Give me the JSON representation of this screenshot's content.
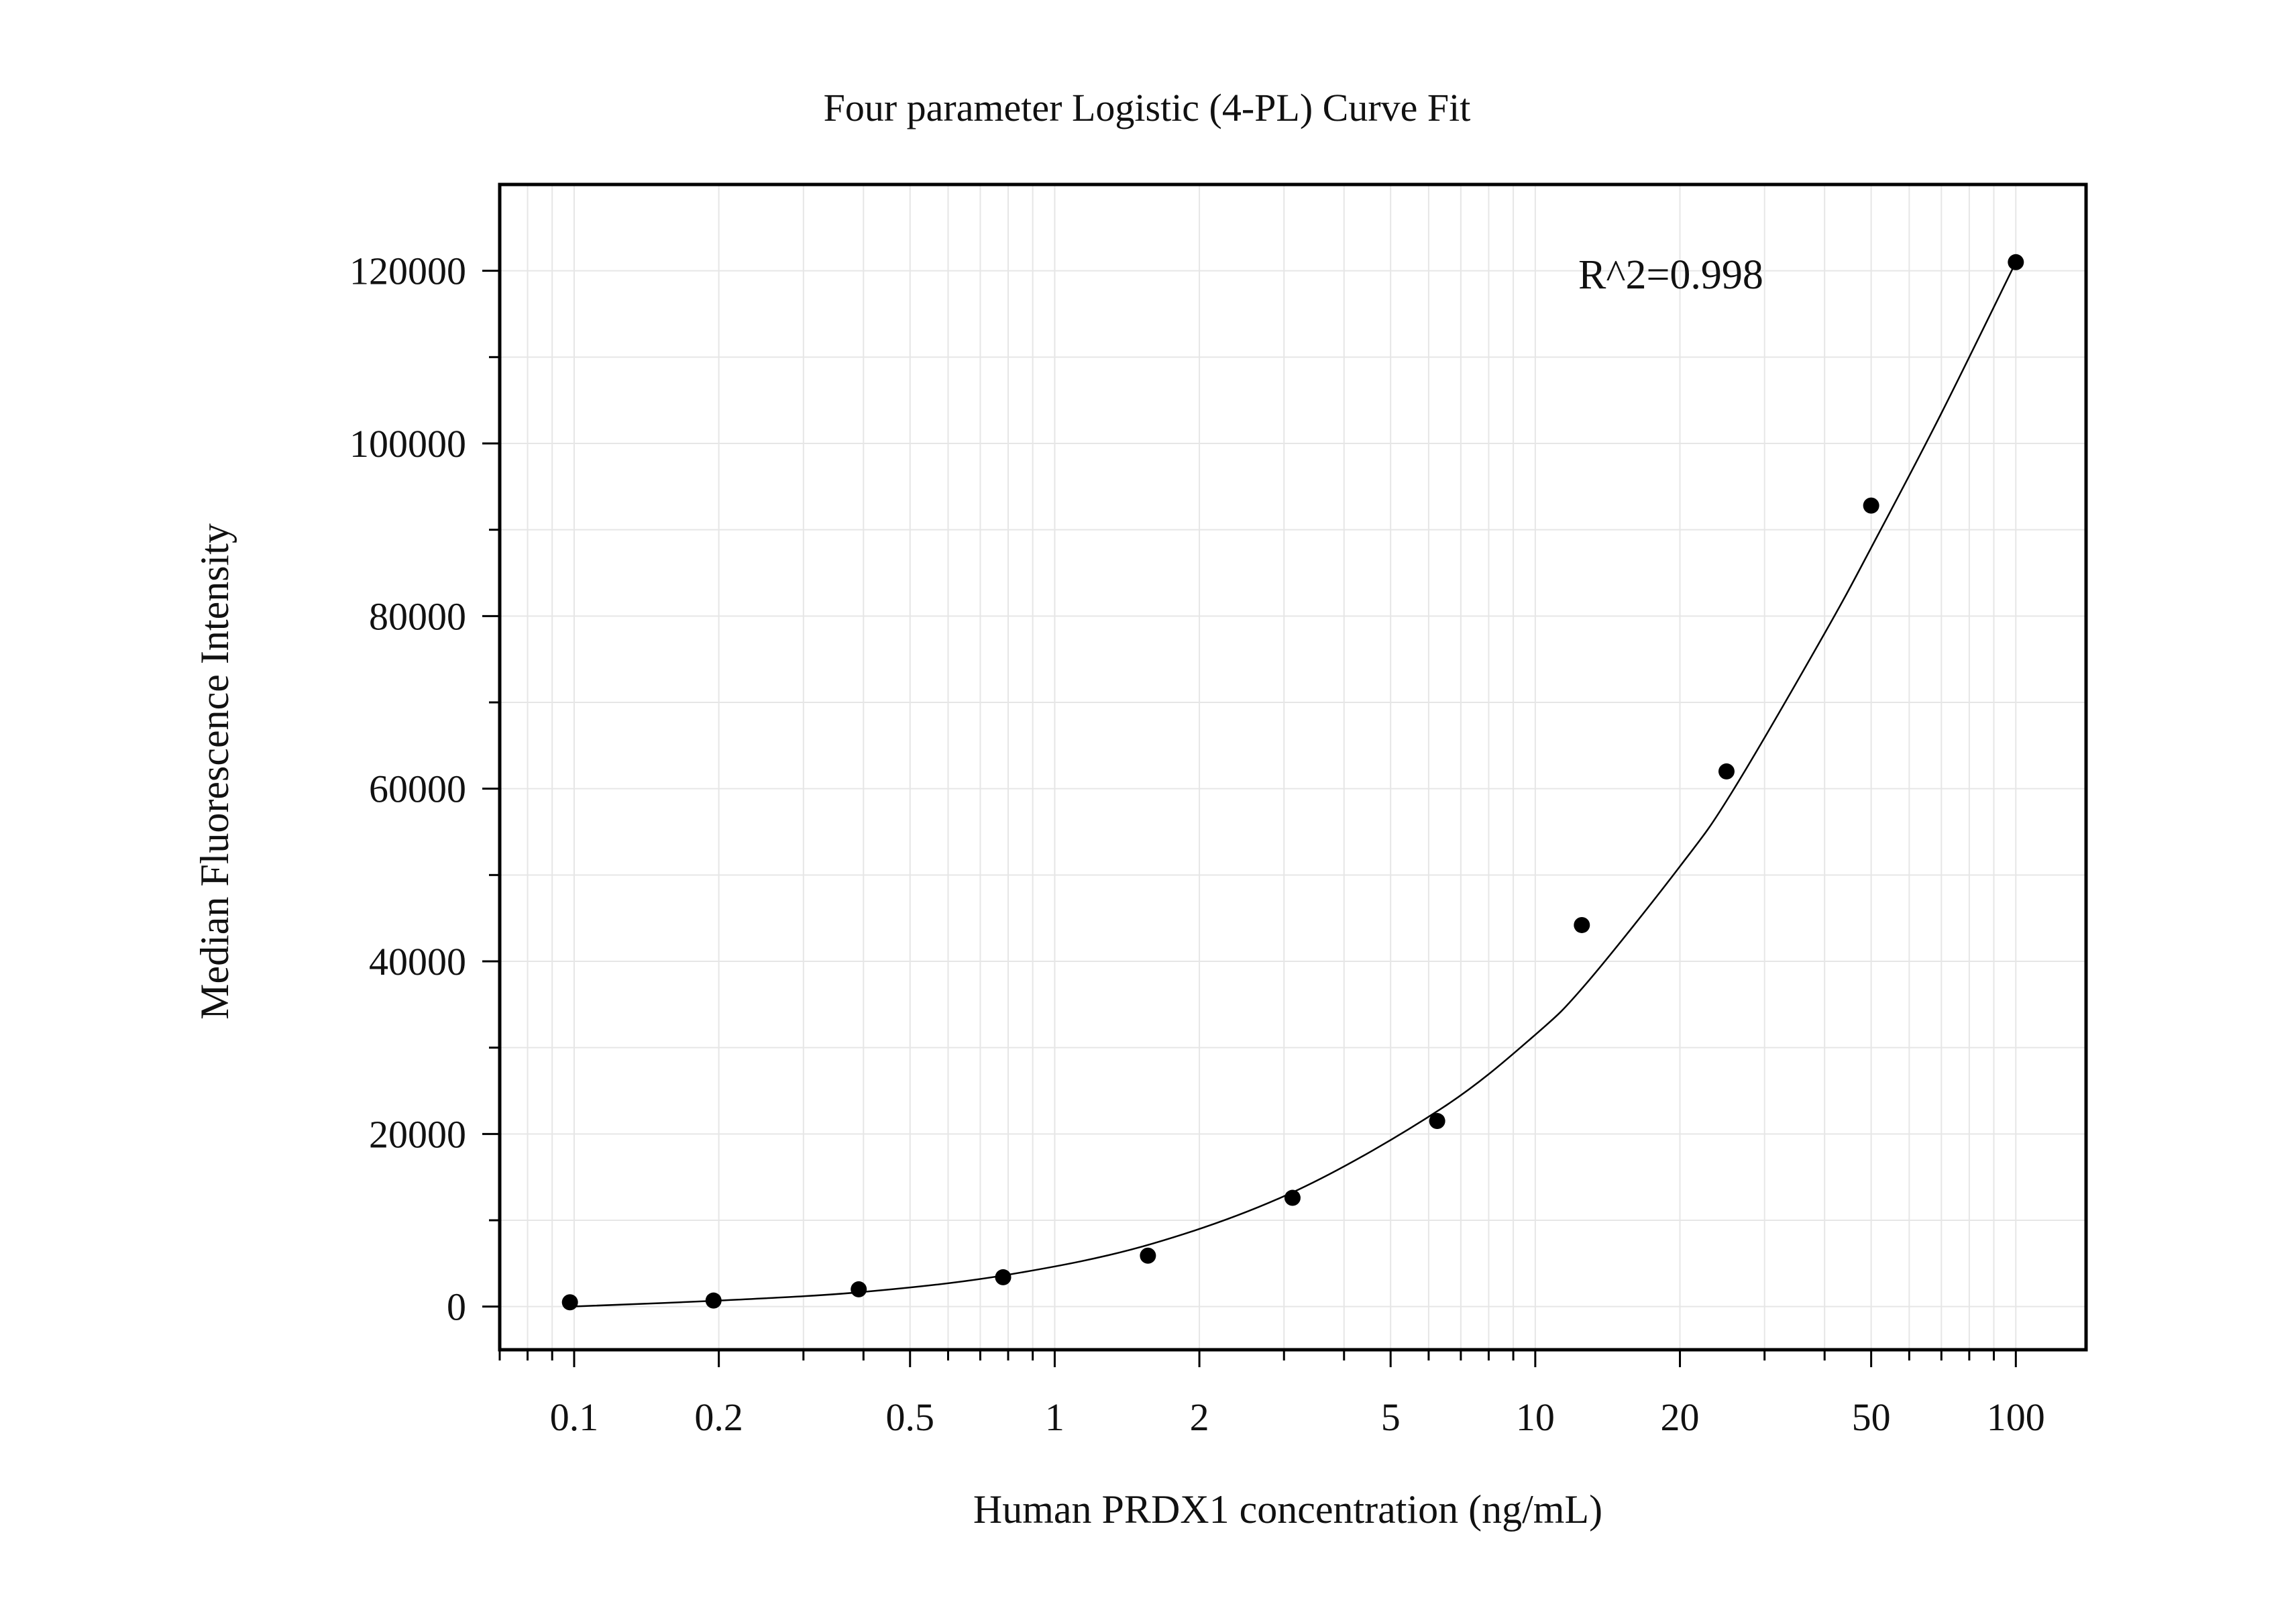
{
  "chart_data": {
    "type": "scatter",
    "title": "Four parameter Logistic (4-PL) Curve Fit",
    "xlabel": "Human PRDX1 concentration (ng/mL)",
    "ylabel": "Median Fluorescence Intensity",
    "x_scale": "log",
    "xlim": [
      0.07,
      140
    ],
    "ylim": [
      -5000,
      130000
    ],
    "grid": true,
    "legend": "none",
    "annotation": "R^2=0.998",
    "x_ticks": [
      {
        "value": 0.1,
        "label": "0.1"
      },
      {
        "value": 0.2,
        "label": "0.2"
      },
      {
        "value": 0.5,
        "label": "0.5"
      },
      {
        "value": 1,
        "label": "1"
      },
      {
        "value": 2,
        "label": "2"
      },
      {
        "value": 5,
        "label": "5"
      },
      {
        "value": 10,
        "label": "10"
      },
      {
        "value": 20,
        "label": "20"
      },
      {
        "value": 50,
        "label": "50"
      },
      {
        "value": 100,
        "label": "100"
      }
    ],
    "y_ticks": [
      {
        "value": 0,
        "label": "0"
      },
      {
        "value": 20000,
        "label": "20000"
      },
      {
        "value": 40000,
        "label": "40000"
      },
      {
        "value": 60000,
        "label": "60000"
      },
      {
        "value": 80000,
        "label": "80000"
      },
      {
        "value": 100000,
        "label": "100000"
      },
      {
        "value": 120000,
        "label": "120000"
      }
    ],
    "series": [
      {
        "kind": "points",
        "color": "#000000",
        "x": [
          0.098,
          0.195,
          0.391,
          0.781,
          1.563,
          3.125,
          6.25,
          12.5,
          25,
          50,
          100
        ],
        "y": [
          500,
          700,
          2000,
          3400,
          5900,
          12600,
          21500,
          44200,
          62000,
          92800,
          121000
        ]
      },
      {
        "kind": "fit-curve",
        "color": "#000000",
        "x": [
          0.098,
          0.2,
          0.4,
          0.8,
          1.6,
          3.2,
          6.4,
          10,
          12.8,
          20,
          25.6,
          40,
          51.2,
          70,
          100
        ],
        "y": [
          0,
          700,
          1700,
          3700,
          7300,
          13500,
          23000,
          31500,
          37500,
          51000,
          59500,
          78000,
          89000,
          103500,
          121000
        ]
      }
    ]
  }
}
